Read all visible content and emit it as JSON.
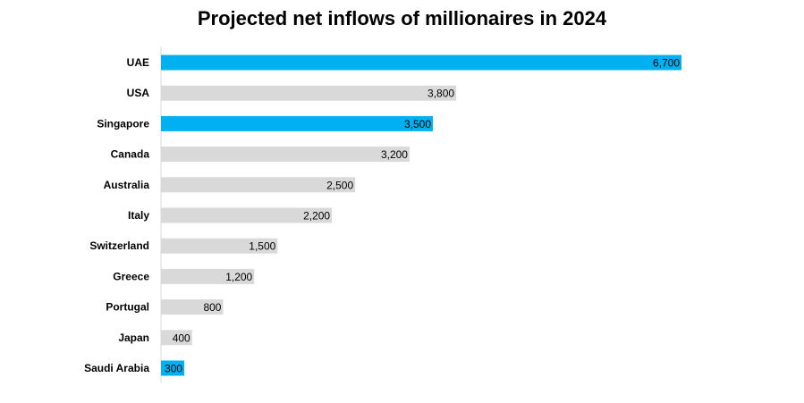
{
  "chart_data": {
    "type": "bar",
    "orientation": "horizontal",
    "title": "Projected net inflows of millionaires in 2024",
    "xlabel": "",
    "ylabel": "",
    "categories": [
      "UAE",
      "USA",
      "Singapore",
      "Canada",
      "Australia",
      "Italy",
      "Switzerland",
      "Greece",
      "Portugal",
      "Japan",
      "Saudi Arabia"
    ],
    "values": [
      6700,
      3800,
      3500,
      3200,
      2500,
      2200,
      1500,
      1200,
      800,
      400,
      300
    ],
    "data_labels": [
      "6,700",
      "3,800",
      "3,500",
      "3,200",
      "2,500",
      "2,200",
      "1,500",
      "1,200",
      "800",
      "400",
      "300"
    ],
    "highlighted": [
      true,
      false,
      true,
      false,
      false,
      false,
      false,
      false,
      false,
      false,
      true
    ],
    "xlim": [
      0,
      6700
    ],
    "grid": false,
    "legend": "none",
    "colors": {
      "highlight": "#00B0F0",
      "default": "#D9D9D9",
      "axis": "#D9D9D9"
    }
  }
}
